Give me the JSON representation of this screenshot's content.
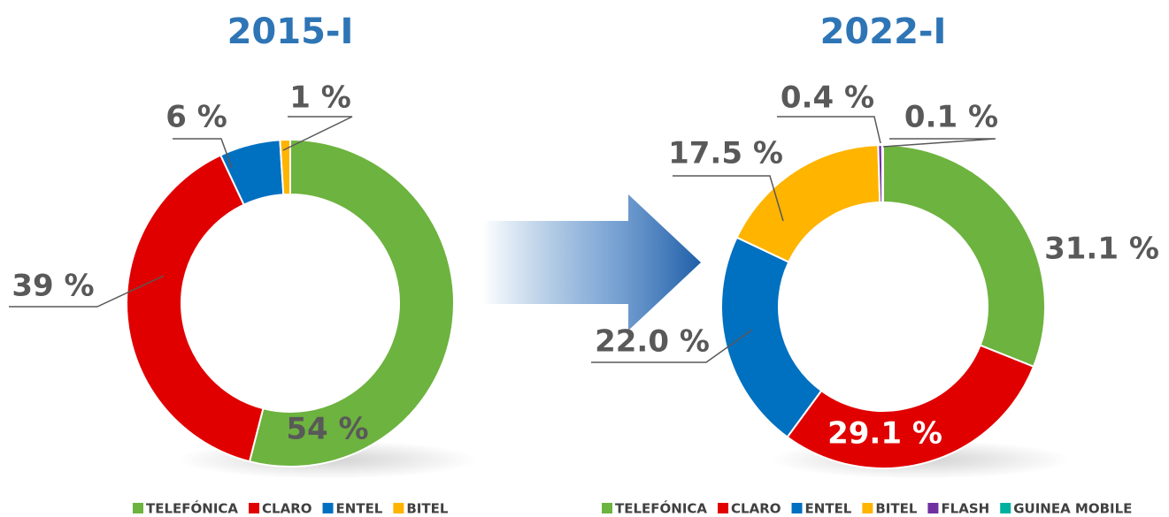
{
  "chart_data": [
    {
      "type": "pie",
      "title": "2015-I",
      "categories": [
        "TELEFÓNICA",
        "CLARO",
        "ENTEL",
        "BITEL"
      ],
      "values": [
        54,
        39,
        6,
        1
      ],
      "value_labels": [
        "54 %",
        "39 %",
        "6 %",
        "1 %"
      ],
      "colors": [
        "#6db33f",
        "#e00000",
        "#0070c0",
        "#ffb400"
      ],
      "donut": true,
      "legend": "bottom"
    },
    {
      "type": "pie",
      "title": "2022-I",
      "categories": [
        "TELEFÓNICA",
        "CLARO",
        "ENTEL",
        "BITEL",
        "FLASH",
        "GUINEA MOBILE"
      ],
      "values": [
        31.1,
        29.1,
        22.0,
        17.5,
        0.4,
        0.1
      ],
      "value_labels": [
        "31.1 %",
        "29.1 %",
        "22.0 %",
        "17.5 %",
        "0.4 %",
        "0.1 %"
      ],
      "colors": [
        "#6db33f",
        "#e00000",
        "#0070c0",
        "#ffb400",
        "#7030a0",
        "#00b0a0"
      ],
      "donut": true,
      "legend": "bottom"
    }
  ]
}
